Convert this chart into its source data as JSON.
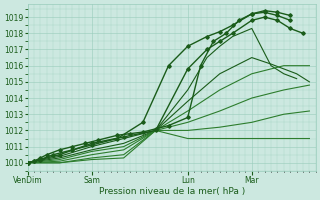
{
  "xlabel": "Pression niveau de la mer( hPa )",
  "bg_color": "#cce8e0",
  "grid_color": "#99ccbb",
  "dark_green": "#1a5c1a",
  "mid_green": "#2d7d2d",
  "ylim": [
    1009.5,
    1019.8
  ],
  "yticks": [
    1010,
    1011,
    1012,
    1013,
    1014,
    1015,
    1016,
    1017,
    1018,
    1019
  ],
  "xlim_days": [
    0,
    4.5
  ],
  "xtick_days": [
    0.0,
    1.0,
    2.5,
    3.5
  ],
  "xtick_labels": [
    "VenDim",
    "Sam",
    "Lun",
    "Mar"
  ],
  "series": [
    {
      "x": [
        0.0,
        0.1,
        0.2,
        0.3,
        0.5,
        0.7,
        0.9,
        1.1,
        1.4,
        1.6,
        1.8,
        2.0,
        2.2,
        2.5,
        2.7,
        2.9,
        3.1,
        3.3,
        3.5,
        3.7,
        3.9,
        4.1
      ],
      "y": [
        1010.0,
        1010.1,
        1010.3,
        1010.5,
        1010.8,
        1011.0,
        1011.2,
        1011.4,
        1011.7,
        1011.8,
        1011.9,
        1012.1,
        1012.3,
        1012.8,
        1016.0,
        1017.5,
        1018.0,
        1018.8,
        1019.2,
        1019.3,
        1019.1,
        1018.8
      ],
      "color": "#1a5c1a",
      "lw": 1.0,
      "marker": true
    },
    {
      "x": [
        0.0,
        0.1,
        0.2,
        0.4,
        0.7,
        1.0,
        1.4,
        1.8,
        2.2,
        2.5,
        2.8,
        3.0,
        3.2,
        3.5,
        3.7,
        3.9,
        4.1
      ],
      "y": [
        1010.0,
        1010.1,
        1010.2,
        1010.5,
        1010.8,
        1011.1,
        1011.5,
        1012.5,
        1016.0,
        1017.2,
        1017.8,
        1018.1,
        1018.5,
        1019.2,
        1019.4,
        1019.3,
        1019.1
      ],
      "color": "#1a5c1a",
      "lw": 1.0,
      "marker": true
    },
    {
      "x": [
        0.0,
        0.2,
        0.5,
        1.0,
        1.5,
        2.0,
        2.5,
        2.8,
        3.0,
        3.2,
        3.5,
        3.7,
        3.9,
        4.1,
        4.3
      ],
      "y": [
        1010.0,
        1010.2,
        1010.5,
        1011.2,
        1011.6,
        1012.0,
        1015.8,
        1017.0,
        1017.5,
        1018.0,
        1018.8,
        1019.0,
        1018.8,
        1018.3,
        1018.0
      ],
      "color": "#1a5c1a",
      "lw": 1.0,
      "marker": true
    },
    {
      "x": [
        0.0,
        0.5,
        1.0,
        1.5,
        2.0,
        2.5,
        2.8,
        3.0,
        3.2,
        3.5,
        3.8,
        4.0,
        4.2
      ],
      "y": [
        1010.0,
        1010.4,
        1011.0,
        1011.5,
        1012.0,
        1014.5,
        1016.5,
        1017.2,
        1017.8,
        1018.3,
        1016.0,
        1015.5,
        1015.2
      ],
      "color": "#1a5c1a",
      "lw": 0.8,
      "marker": false
    },
    {
      "x": [
        0.0,
        0.5,
        1.0,
        1.5,
        2.0,
        2.5,
        3.0,
        3.5,
        3.8,
        4.0,
        4.2,
        4.4
      ],
      "y": [
        1010.0,
        1010.3,
        1010.8,
        1011.2,
        1012.0,
        1013.8,
        1015.5,
        1016.5,
        1016.1,
        1015.8,
        1015.5,
        1015.0
      ],
      "color": "#1a5c1a",
      "lw": 0.8,
      "marker": false
    },
    {
      "x": [
        0.0,
        0.5,
        1.0,
        1.5,
        2.0,
        2.5,
        3.0,
        3.5,
        4.0,
        4.4
      ],
      "y": [
        1010.0,
        1010.2,
        1010.7,
        1011.0,
        1012.0,
        1013.2,
        1014.5,
        1015.5,
        1016.0,
        1016.0
      ],
      "color": "#2d7d2d",
      "lw": 0.8,
      "marker": false
    },
    {
      "x": [
        0.0,
        0.5,
        1.0,
        1.5,
        2.0,
        2.5,
        3.0,
        3.5,
        4.0,
        4.4
      ],
      "y": [
        1010.0,
        1010.1,
        1010.5,
        1010.8,
        1012.0,
        1012.5,
        1013.2,
        1014.0,
        1014.5,
        1014.8
      ],
      "color": "#2d7d2d",
      "lw": 0.8,
      "marker": false
    },
    {
      "x": [
        0.0,
        0.5,
        1.0,
        1.5,
        2.0,
        2.5,
        3.0,
        3.5,
        4.0,
        4.4
      ],
      "y": [
        1010.0,
        1010.0,
        1010.3,
        1010.5,
        1012.0,
        1012.0,
        1012.2,
        1012.5,
        1013.0,
        1013.2
      ],
      "color": "#2d7d2d",
      "lw": 0.8,
      "marker": false
    },
    {
      "x": [
        0.0,
        0.5,
        1.0,
        1.5,
        2.0,
        2.5,
        3.0,
        3.5,
        4.0,
        4.4
      ],
      "y": [
        1010.0,
        1010.0,
        1010.2,
        1010.3,
        1012.0,
        1011.5,
        1011.5,
        1011.5,
        1011.5,
        1011.5
      ],
      "color": "#2d7d2d",
      "lw": 0.8,
      "marker": false
    }
  ]
}
